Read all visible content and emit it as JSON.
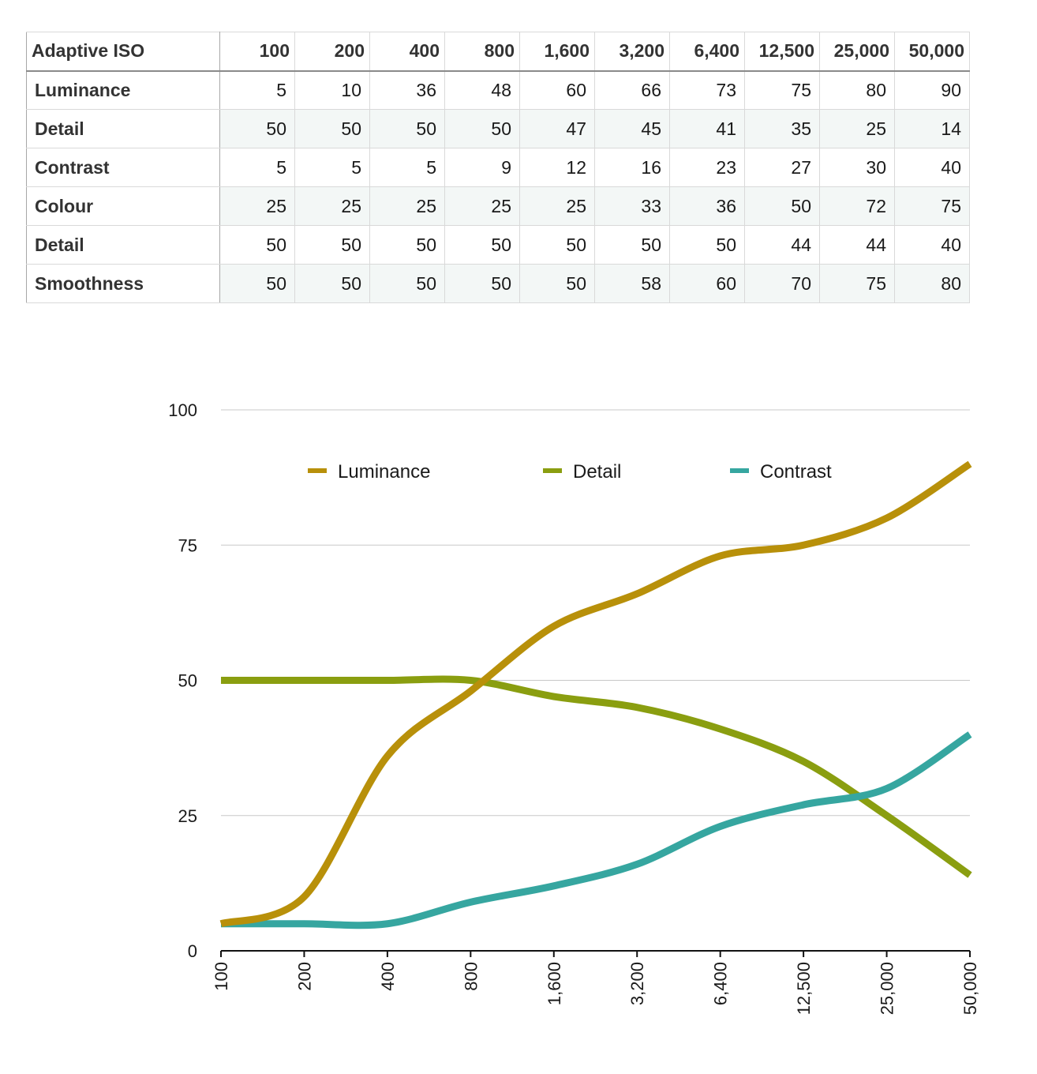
{
  "table": {
    "header": [
      "Adaptive ISO",
      "100",
      "200",
      "400",
      "800",
      "1,600",
      "3,200",
      "6,400",
      "12,500",
      "25,000",
      "50,000"
    ],
    "rows": [
      {
        "label": "Luminance",
        "values": [
          "5",
          "10",
          "36",
          "48",
          "60",
          "66",
          "73",
          "75",
          "80",
          "90"
        ]
      },
      {
        "label": "Detail",
        "values": [
          "50",
          "50",
          "50",
          "50",
          "47",
          "45",
          "41",
          "35",
          "25",
          "14"
        ]
      },
      {
        "label": "Contrast",
        "values": [
          "5",
          "5",
          "5",
          "9",
          "12",
          "16",
          "23",
          "27",
          "30",
          "40"
        ]
      },
      {
        "label": "Colour",
        "values": [
          "25",
          "25",
          "25",
          "25",
          "25",
          "33",
          "36",
          "50",
          "72",
          "75"
        ]
      },
      {
        "label": "Detail",
        "values": [
          "50",
          "50",
          "50",
          "50",
          "50",
          "50",
          "50",
          "44",
          "44",
          "40"
        ]
      },
      {
        "label": "Smoothness",
        "values": [
          "50",
          "50",
          "50",
          "50",
          "50",
          "58",
          "60",
          "70",
          "75",
          "80"
        ]
      }
    ]
  },
  "chart_data": {
    "type": "line",
    "categories": [
      "100",
      "200",
      "400",
      "800",
      "1,600",
      "3,200",
      "6,400",
      "12,500",
      "25,000",
      "50,000"
    ],
    "series": [
      {
        "name": "Luminance",
        "color": "#b8900a",
        "values": [
          5,
          10,
          36,
          48,
          60,
          66,
          73,
          75,
          80,
          90
        ]
      },
      {
        "name": "Detail",
        "color": "#8a9e10",
        "values": [
          50,
          50,
          50,
          50,
          47,
          45,
          41,
          35,
          25,
          14
        ]
      },
      {
        "name": "Contrast",
        "color": "#36a6a0",
        "values": [
          5,
          5,
          5,
          9,
          12,
          16,
          23,
          27,
          30,
          40
        ]
      }
    ],
    "ylim": [
      0,
      100
    ],
    "yticks": [
      0,
      25,
      50,
      75,
      100
    ],
    "ytick_labels": [
      "0",
      "25",
      "50",
      "75",
      "100"
    ],
    "grid": true,
    "smooth": true,
    "legend_position": "top"
  }
}
